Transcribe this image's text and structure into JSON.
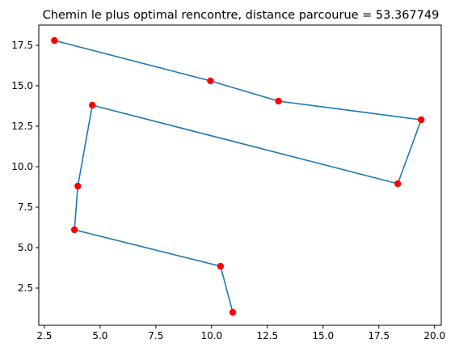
{
  "chart_data": {
    "type": "line",
    "title": "Chemin le plus optimal rencontre, distance parcourue = 53.367749",
    "xlabel": "",
    "ylabel": "",
    "xlim": [
      2.25,
      20.3
    ],
    "ylim": [
      0.2,
      18.75
    ],
    "xticks": [
      {
        "value": 2.5,
        "label": "2.5"
      },
      {
        "value": 5.0,
        "label": "5.0"
      },
      {
        "value": 7.5,
        "label": "7.5"
      },
      {
        "value": 10.0,
        "label": "10.0"
      },
      {
        "value": 12.5,
        "label": "12.5"
      },
      {
        "value": 15.0,
        "label": "15.0"
      },
      {
        "value": 17.5,
        "label": "17.5"
      },
      {
        "value": 20.0,
        "label": "20.0"
      }
    ],
    "yticks": [
      {
        "value": 2.5,
        "label": "2.5"
      },
      {
        "value": 5.0,
        "label": "5.0"
      },
      {
        "value": 7.5,
        "label": "7.5"
      },
      {
        "value": 10.0,
        "label": "10.0"
      },
      {
        "value": 12.5,
        "label": "12.5"
      },
      {
        "value": 15.0,
        "label": "15.0"
      },
      {
        "value": 17.5,
        "label": "17.5"
      }
    ],
    "grid": false,
    "series": [
      {
        "line_color": "#1f77b4",
        "marker_color": "#ff0000",
        "x": [
          2.95,
          9.95,
          13.0,
          19.4,
          18.35,
          4.65,
          4.0,
          3.85,
          10.4,
          10.95
        ],
        "y": [
          17.8,
          15.3,
          14.05,
          12.9,
          8.95,
          13.8,
          8.8,
          6.1,
          3.85,
          1.0
        ]
      }
    ]
  }
}
